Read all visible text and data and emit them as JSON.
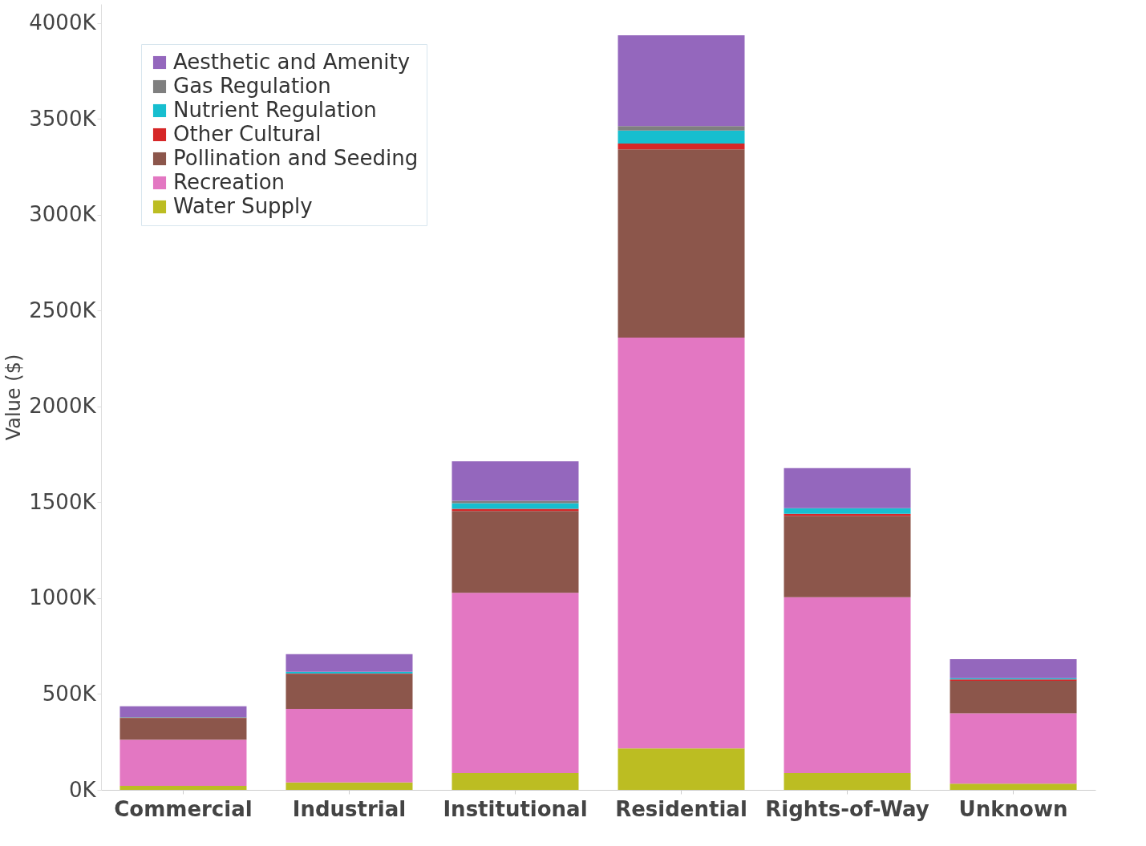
{
  "chart_data": {
    "type": "bar",
    "stacked": true,
    "ylabel": "Value ($)",
    "categories": [
      "Commercial",
      "Industrial",
      "Institutional",
      "Residential",
      "Rights-of-Way",
      "Unknown"
    ],
    "series": [
      {
        "name": "Water Supply",
        "color": "#bcbd22",
        "values": [
          21,
          39,
          88,
          216,
          88,
          32
        ]
      },
      {
        "name": "Recreation",
        "color": "#e377c2",
        "values": [
          241,
          384,
          940,
          2144,
          917,
          368
        ]
      },
      {
        "name": "Pollination and Seeding",
        "color": "#8c564b",
        "values": [
          113,
          180,
          427,
          982,
          425,
          169
        ]
      },
      {
        "name": "Other Cultural",
        "color": "#d62728",
        "values": [
          3,
          4,
          11,
          30,
          10,
          7
        ]
      },
      {
        "name": "Nutrient Regulation",
        "color": "#17becf",
        "values": [
          2,
          9,
          30,
          68,
          29,
          7
        ]
      },
      {
        "name": "Gas Regulation",
        "color": "#7f7f7f",
        "values": [
          null,
          null,
          12,
          23,
          null,
          null
        ]
      },
      {
        "name": "Aesthetic and Amenity",
        "color": "#9467bd",
        "values": [
          56,
          92,
          206,
          474,
          210,
          99
        ]
      }
    ],
    "ylim": [
      0,
      4100
    ],
    "yticks": [
      {
        "value": 0,
        "label": "0K"
      },
      {
        "value": 500,
        "label": "500K"
      },
      {
        "value": 1000,
        "label": "1000K"
      },
      {
        "value": 1500,
        "label": "1500K"
      },
      {
        "value": 2000,
        "label": "2000K"
      },
      {
        "value": 2500,
        "label": "2500K"
      },
      {
        "value": 3000,
        "label": "3000K"
      },
      {
        "value": 3500,
        "label": "3500K"
      },
      {
        "value": 4000,
        "label": "4000K"
      }
    ],
    "grid": false,
    "legend": "top left"
  }
}
